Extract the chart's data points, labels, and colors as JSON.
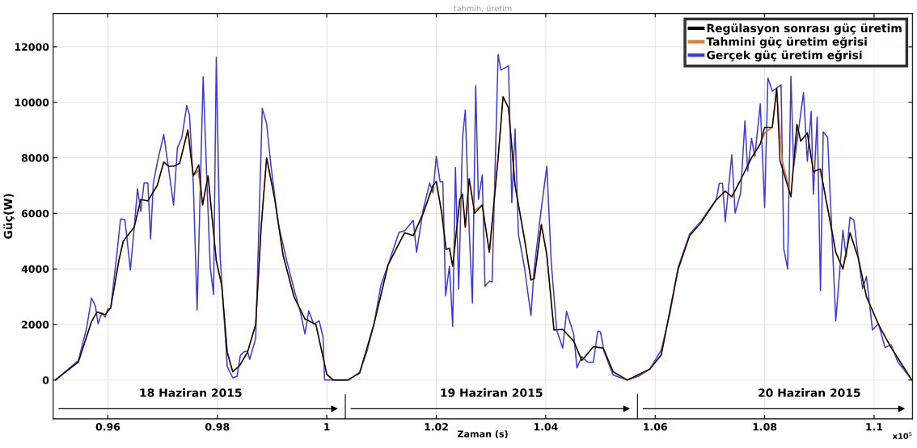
{
  "chart_data": {
    "type": "line",
    "title": "tahmin, üretim",
    "xlabel": "Zaman (s)",
    "ylabel": "Güç(W)",
    "xlim": [
      0.95,
      1.107
    ],
    "ylim": [
      -1400,
      13200
    ],
    "xticks": [
      0.96,
      0.98,
      1,
      1.02,
      1.04,
      1.06,
      1.08,
      1.1
    ],
    "yticks": [
      0,
      2000,
      4000,
      6000,
      8000,
      10000,
      12000
    ],
    "grid": true,
    "legend": "top right",
    "line_style": "solid",
    "marker": "none",
    "annotations": [
      "18 Haziran 2015",
      "19 Haziran 2015",
      "20 Haziran 2015",
      "x10$^{5}$"
    ],
    "series": [
      {
        "name": "Regülasyon sonrası güç üretim",
        "color": "#000000",
        "x": [
          0.9504,
          0.9546,
          0.957,
          0.958,
          0.9595,
          0.9605,
          0.962,
          0.9628,
          0.964,
          0.9648,
          0.966,
          0.9673,
          0.969,
          0.9702,
          0.9711,
          0.972,
          0.9731,
          0.9746,
          0.9756,
          0.9766,
          0.9773,
          0.9783,
          0.9798,
          0.9808,
          0.9818,
          0.9828,
          0.984,
          0.9855,
          0.987,
          0.988,
          0.989,
          0.9905,
          0.992,
          0.994,
          0.996,
          0.998,
          1.0,
          1.0012,
          1.0038,
          1.006,
          1.0086,
          1.0112,
          1.0142,
          1.0158,
          1.0176,
          1.0194,
          1.02,
          1.021,
          1.0218,
          1.0224,
          1.023,
          1.0243,
          1.0248,
          1.0253,
          1.026,
          1.027,
          1.0284,
          1.0297,
          1.0313,
          1.0322,
          1.0332,
          1.0344,
          1.0361,
          1.0373,
          1.0379,
          1.0392,
          1.0402,
          1.0415,
          1.0431,
          1.0451,
          1.0466,
          1.0487,
          1.0505,
          1.0523,
          1.0549,
          1.059,
          1.0611,
          1.0642,
          1.0663,
          1.0683,
          1.0712,
          1.0728,
          1.074,
          1.0756,
          1.0776,
          1.0792,
          1.08,
          1.0814,
          1.0822,
          1.0828,
          1.0848,
          1.0859,
          1.0866,
          1.0878,
          1.0889,
          1.0902,
          1.0915,
          1.093,
          1.0943,
          1.0956,
          1.0971,
          1.0986,
          1.1008,
          1.103,
          1.1069
        ],
        "values": [
          0,
          650,
          2100,
          2450,
          2350,
          2600,
          4300,
          5000,
          5300,
          5500,
          6500,
          6450,
          7000,
          7850,
          7700,
          7700,
          7800,
          9000,
          7350,
          7750,
          6300,
          7350,
          4300,
          3400,
          1000,
          300,
          500,
          1000,
          2000,
          5500,
          8000,
          6500,
          4500,
          3000,
          2200,
          2000,
          200,
          0,
          0,
          250,
          2000,
          4150,
          5300,
          5200,
          6000,
          7000,
          7150,
          6000,
          4700,
          4750,
          4100,
          6500,
          6700,
          5500,
          7250,
          6000,
          6300,
          4600,
          8000,
          10200,
          9800,
          7000,
          5100,
          3600,
          3650,
          5600,
          4500,
          1800,
          1820,
          1400,
          700,
          1200,
          1150,
          300,
          0,
          390,
          900,
          4000,
          5200,
          5650,
          6500,
          6800,
          6600,
          7200,
          8000,
          8500,
          9100,
          9100,
          10500,
          7900,
          6600,
          9200,
          8600,
          8900,
          7500,
          7600,
          6200,
          4600,
          4000,
          5300,
          4400,
          3000,
          2000,
          1200,
          0
        ]
      },
      {
        "name": "Tahmini güç üretim eğrisi",
        "color": "#e8772e",
        "x": [
          0.9504,
          0.9546,
          0.957,
          0.958,
          0.9595,
          0.9605,
          0.962,
          0.9628,
          0.964,
          0.9648,
          0.966,
          0.9673,
          0.969,
          0.9702,
          0.9711,
          0.972,
          0.9731,
          0.9746,
          0.9756,
          0.9765,
          0.9773,
          0.9783,
          0.9798,
          0.9808,
          0.9818,
          0.9828,
          0.984,
          0.9855,
          0.987,
          0.988,
          0.989,
          0.9905,
          0.992,
          0.994,
          0.996,
          0.998,
          1.0,
          1.0012,
          1.0038,
          1.006,
          1.0086,
          1.0112,
          1.0142,
          1.0158,
          1.0176,
          1.0194,
          1.02,
          1.021,
          1.0218,
          1.0224,
          1.023,
          1.0243,
          1.0248,
          1.0253,
          1.026,
          1.027,
          1.0284,
          1.0297,
          1.0313,
          1.0322,
          1.0332,
          1.0344,
          1.0361,
          1.0373,
          1.0379,
          1.0392,
          1.0402,
          1.0415,
          1.0431,
          1.0451,
          1.0466,
          1.0487,
          1.0505,
          1.0523,
          1.0549,
          1.059,
          1.0611,
          1.0642,
          1.0663,
          1.0683,
          1.0712,
          1.0728,
          1.074,
          1.0756,
          1.0776,
          1.0792,
          1.08,
          1.0814,
          1.0822,
          1.0832,
          1.0848,
          1.0859,
          1.0866,
          1.0878,
          1.0889,
          1.0902,
          1.0915,
          1.093,
          1.0943,
          1.0956,
          1.0971,
          1.0986,
          1.1008,
          1.103,
          1.1069
        ],
        "values": [
          0,
          650,
          2100,
          2450,
          2350,
          2600,
          4300,
          5000,
          5300,
          5500,
          6500,
          6450,
          7000,
          7850,
          7700,
          7700,
          7800,
          9000,
          7350,
          7550,
          6300,
          7350,
          4300,
          3400,
          1000,
          300,
          500,
          1000,
          2000,
          5500,
          8000,
          6500,
          4500,
          3000,
          2200,
          2000,
          200,
          0,
          0,
          250,
          2000,
          4150,
          5300,
          5200,
          6000,
          7000,
          7150,
          6000,
          4700,
          4750,
          4100,
          6500,
          6600,
          5500,
          7250,
          6100,
          6300,
          4600,
          8000,
          10200,
          9800,
          7000,
          5100,
          3600,
          3650,
          5600,
          4500,
          1800,
          1820,
          1400,
          700,
          1200,
          1150,
          300,
          0,
          390,
          900,
          4000,
          5200,
          5650,
          6500,
          6800,
          6600,
          7200,
          8000,
          8500,
          8900,
          9100,
          10500,
          7900,
          6600,
          9200,
          8600,
          8900,
          7600,
          7500,
          6200,
          4600,
          4000,
          5300,
          4400,
          3000,
          2000,
          1200,
          0
        ]
      },
      {
        "name": "Gerçek güç üretim eğrisi",
        "color": "#3a3ae0",
        "x": [
          0.9504,
          0.9546,
          0.9561,
          0.957,
          0.9577,
          0.9582,
          0.9589,
          0.9595,
          0.96,
          0.9605,
          0.9617,
          0.9623,
          0.9631,
          0.9641,
          0.9648,
          0.9654,
          0.966,
          0.9666,
          0.9673,
          0.9678,
          0.9683,
          0.9691,
          0.9702,
          0.9711,
          0.972,
          0.9727,
          0.9735,
          0.9744,
          0.9749,
          0.9756,
          0.9763,
          0.9774,
          0.9781,
          0.9787,
          0.9793,
          0.9798,
          0.9805,
          0.9818,
          0.9828,
          0.9836,
          0.9842,
          0.9849,
          0.9855,
          0.9859,
          0.987,
          0.9882,
          0.989,
          0.9898,
          0.9911,
          0.9926,
          0.9942,
          0.9952,
          0.996,
          0.9967,
          0.9976,
          0.9986,
          0.9993,
          0.9996,
          1.004,
          1.006,
          1.0073,
          1.0086,
          1.0099,
          1.0112,
          1.0132,
          1.0142,
          1.0158,
          1.0164,
          1.0176,
          1.0188,
          1.0194,
          1.02,
          1.0207,
          1.0212,
          1.0217,
          1.0224,
          1.023,
          1.0235,
          1.0241,
          1.0248,
          1.0253,
          1.026,
          1.0266,
          1.0272,
          1.0277,
          1.0284,
          1.0289,
          1.0297,
          1.0302,
          1.0313,
          1.0318,
          1.0332,
          1.0338,
          1.0344,
          1.035,
          1.0361,
          1.0373,
          1.0379,
          1.0392,
          1.0402,
          1.041,
          1.042,
          1.0431,
          1.0438,
          1.0451,
          1.0457,
          1.0466,
          1.0477,
          1.0487,
          1.0495,
          1.05,
          1.0507,
          1.0523,
          1.0549,
          1.0569,
          1.059,
          1.0611,
          1.0627,
          1.0642,
          1.0663,
          1.0683,
          1.0712,
          1.0717,
          1.0723,
          1.0728,
          1.074,
          1.0746,
          1.0756,
          1.0764,
          1.0769,
          1.0776,
          1.0782,
          1.0792,
          1.08,
          1.0806,
          1.0814,
          1.083,
          1.0835,
          1.0842,
          1.0848,
          1.0853,
          1.0871,
          1.0878,
          1.0885,
          1.0889,
          1.0896,
          1.0902,
          1.0907,
          1.0915,
          1.093,
          1.0943,
          1.0949,
          1.0956,
          1.0963,
          1.0971,
          1.0979,
          1.0986,
          1.0997,
          1.1008,
          1.102,
          1.1031,
          1.1043,
          1.1069
        ],
        "values": [
          0,
          700,
          1860,
          2950,
          2670,
          2030,
          2420,
          2270,
          2570,
          2570,
          4650,
          5800,
          5780,
          3960,
          5470,
          6890,
          6080,
          7090,
          7090,
          5080,
          7090,
          7900,
          8840,
          7600,
          6300,
          8360,
          8720,
          9880,
          9550,
          7090,
          2520,
          10920,
          7090,
          4040,
          3080,
          11620,
          4450,
          490,
          80,
          130,
          890,
          1020,
          1050,
          740,
          1500,
          9780,
          9230,
          7700,
          5670,
          4350,
          3130,
          2420,
          1660,
          2490,
          2010,
          2130,
          1550,
          0,
          0,
          280,
          1000,
          2010,
          3430,
          4150,
          5320,
          5370,
          5750,
          4600,
          6130,
          7090,
          6740,
          8060,
          7140,
          7140,
          3030,
          4100,
          1930,
          7650,
          3280,
          8720,
          9720,
          5470,
          2770,
          10600,
          6500,
          7380,
          3380,
          3560,
          3540,
          11720,
          11160,
          11310,
          6380,
          9040,
          5260,
          4070,
          2320,
          4040,
          6180,
          7700,
          4250,
          1810,
          1150,
          2470,
          1660,
          440,
          840,
          640,
          640,
          1760,
          1730,
          1000,
          180,
          0,
          130,
          390,
          1080,
          2400,
          4070,
          5260,
          5700,
          6520,
          7080,
          7080,
          5700,
          8110,
          6010,
          6720,
          9330,
          7520,
          8700,
          8050,
          9940,
          6210,
          10880,
          10400,
          10630,
          4710,
          4000,
          10940,
          7670,
          10350,
          7870,
          9670,
          6690,
          9470,
          3210,
          8940,
          8740,
          2130,
          5390,
          4420,
          5860,
          5760,
          4420,
          3300,
          3730,
          1800,
          2030,
          1170,
          1270,
          660,
          0
        ]
      }
    ]
  }
}
